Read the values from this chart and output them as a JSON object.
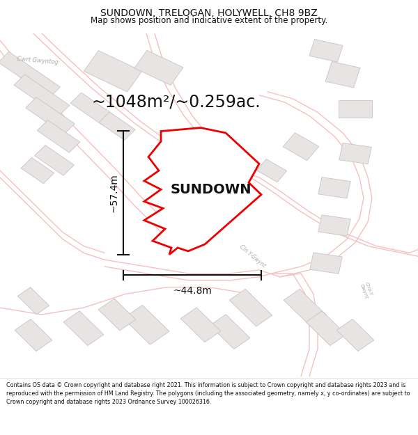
{
  "title": "SUNDOWN, TRELOGAN, HOLYWELL, CH8 9BZ",
  "subtitle": "Map shows position and indicative extent of the property.",
  "footer": "Contains OS data © Crown copyright and database right 2021. This information is subject to Crown copyright and database rights 2023 and is reproduced with the permission of HM Land Registry. The polygons (including the associated geometry, namely x, y co-ordinates) are subject to Crown copyright and database rights 2023 Ordnance Survey 100026316.",
  "area_label": "~1048m²/~0.259ac.",
  "property_name": "SUNDOWN",
  "width_label": "~44.8m",
  "height_label": "~57.4m",
  "map_bg": "#faf8f8",
  "road_color": "#f5c0c0",
  "building_fill": "#e8e4e4",
  "building_edge": "#c8c4c4",
  "plot_color": "#ee0000",
  "dim_color": "#111111",
  "text_color": "#111111",
  "road_label_color": "#aaaaaa",
  "title_fontsize": 10,
  "subtitle_fontsize": 8.5,
  "area_fontsize": 17,
  "property_fontsize": 14,
  "dim_fontsize": 10,
  "footer_fontsize": 5.8
}
